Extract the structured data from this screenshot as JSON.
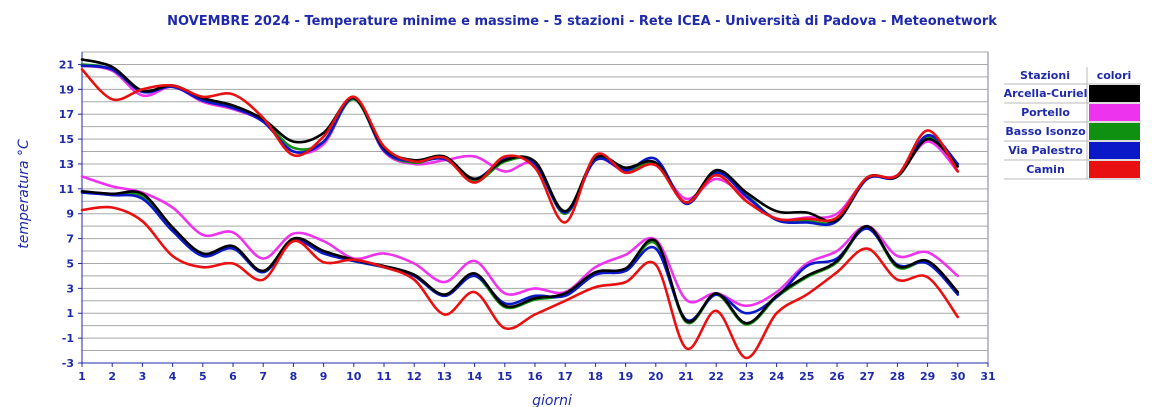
{
  "chart_data": {
    "type": "line",
    "title": "NOVEMBRE 2024 - Temperature minime e massime - 5 stazioni -  Rete ICEA - Università di Padova - Meteonetwork",
    "xlabel": "giorni",
    "ylabel": "temperatura °C",
    "xlim": [
      1,
      31
    ],
    "ylim": [
      -3,
      22
    ],
    "x_ticks": [
      1,
      2,
      3,
      4,
      5,
      6,
      7,
      8,
      9,
      10,
      11,
      12,
      13,
      14,
      15,
      16,
      17,
      18,
      19,
      20,
      21,
      22,
      23,
      24,
      25,
      26,
      27,
      28,
      29,
      30,
      31
    ],
    "y_ticks": [
      -3,
      -1,
      1,
      3,
      5,
      7,
      9,
      11,
      13,
      15,
      17,
      19,
      21
    ],
    "grid": true,
    "legend": {
      "header_stations": "Stazioni",
      "header_colors": "colori",
      "placement": "right"
    },
    "series": [
      {
        "name": "Arcella-Curiel",
        "color": "#000000",
        "max": [
          21.4,
          20.8,
          18.9,
          19.3,
          18.3,
          17.7,
          16.6,
          14.8,
          15.5,
          18.3,
          14.3,
          13.3,
          13.6,
          11.8,
          13.3,
          13.2,
          9.2,
          13.5,
          12.7,
          13.1,
          9.9,
          12.5,
          10.7,
          9.2,
          9.1,
          8.5,
          11.9,
          12.0,
          15.0,
          12.8
        ],
        "min": [
          10.8,
          10.6,
          10.6,
          7.9,
          5.8,
          6.4,
          4.4,
          7.0,
          6.0,
          5.3,
          4.8,
          4.1,
          2.5,
          4.2,
          1.6,
          2.2,
          2.6,
          4.3,
          4.6,
          6.8,
          0.4,
          2.6,
          0.2,
          2.4,
          4.0,
          5.2,
          8.0,
          4.8,
          5.2,
          2.7
        ]
      },
      {
        "name": "Portello",
        "color": "#ee33ee",
        "max": [
          20.9,
          20.5,
          18.5,
          19.2,
          18.0,
          17.4,
          16.4,
          14.0,
          14.6,
          18.3,
          14.0,
          13.0,
          13.3,
          13.6,
          12.4,
          13.0,
          9.0,
          13.3,
          12.4,
          12.9,
          10.2,
          11.8,
          10.3,
          8.6,
          8.7,
          9.0,
          11.8,
          12.1,
          14.8,
          12.4
        ],
        "min": [
          12.0,
          11.2,
          10.7,
          9.5,
          7.3,
          7.5,
          5.4,
          7.4,
          6.8,
          5.4,
          5.8,
          5.0,
          3.5,
          5.2,
          2.6,
          3.0,
          2.7,
          4.7,
          5.7,
          6.9,
          2.1,
          2.6,
          1.6,
          2.7,
          5.0,
          6.0,
          8.0,
          5.6,
          5.9,
          4.0
        ]
      },
      {
        "name": "Basso Isonzo",
        "color": "#109010",
        "max": [
          21.0,
          20.6,
          18.8,
          19.3,
          18.2,
          17.6,
          16.5,
          14.3,
          14.8,
          18.2,
          14.1,
          13.1,
          13.5,
          11.6,
          13.2,
          13.1,
          9.0,
          13.4,
          12.5,
          13.0,
          9.9,
          12.3,
          10.5,
          8.5,
          8.4,
          8.5,
          11.9,
          12.0,
          15.2,
          12.8
        ],
        "min": [
          10.8,
          10.5,
          10.4,
          7.7,
          5.7,
          6.3,
          4.3,
          6.9,
          5.9,
          5.2,
          4.7,
          4.0,
          2.4,
          4.0,
          1.5,
          2.1,
          2.5,
          4.2,
          4.5,
          6.6,
          0.3,
          2.5,
          0.1,
          2.3,
          3.9,
          5.1,
          7.9,
          4.7,
          5.1,
          2.6
        ]
      },
      {
        "name": "Via Palestro",
        "color": "#0a18c8",
        "max": [
          20.9,
          20.6,
          18.8,
          19.2,
          18.1,
          17.5,
          16.4,
          14.0,
          14.8,
          18.3,
          14.1,
          13.2,
          13.4,
          11.8,
          13.4,
          13.0,
          9.1,
          13.3,
          12.5,
          13.4,
          9.8,
          12.3,
          10.4,
          8.5,
          8.3,
          8.4,
          11.8,
          12.0,
          15.3,
          13.0
        ],
        "min": [
          10.7,
          10.5,
          10.2,
          7.6,
          5.6,
          6.2,
          4.3,
          6.8,
          5.8,
          5.2,
          4.7,
          4.0,
          2.4,
          4.0,
          1.8,
          2.4,
          2.4,
          4.1,
          4.4,
          6.2,
          0.5,
          2.5,
          1.0,
          2.3,
          4.8,
          5.4,
          7.8,
          4.9,
          5.0,
          2.5
        ]
      },
      {
        "name": "Camin",
        "color": "#e81010",
        "max": [
          20.6,
          18.2,
          19.0,
          19.3,
          18.4,
          18.6,
          16.7,
          13.7,
          15.2,
          18.4,
          14.4,
          13.2,
          13.5,
          11.5,
          13.6,
          12.7,
          8.3,
          13.7,
          12.3,
          12.9,
          9.9,
          12.1,
          10.0,
          8.6,
          8.6,
          8.7,
          11.9,
          12.1,
          15.7,
          12.4
        ],
        "min": [
          9.3,
          9.5,
          8.4,
          5.6,
          4.7,
          5.0,
          3.7,
          6.8,
          5.1,
          5.3,
          4.7,
          3.7,
          0.9,
          2.7,
          -0.2,
          0.9,
          2.0,
          3.1,
          3.5,
          4.9,
          -1.8,
          1.2,
          -2.6,
          1.0,
          2.5,
          4.3,
          6.2,
          3.7,
          3.9,
          0.7
        ]
      }
    ]
  }
}
